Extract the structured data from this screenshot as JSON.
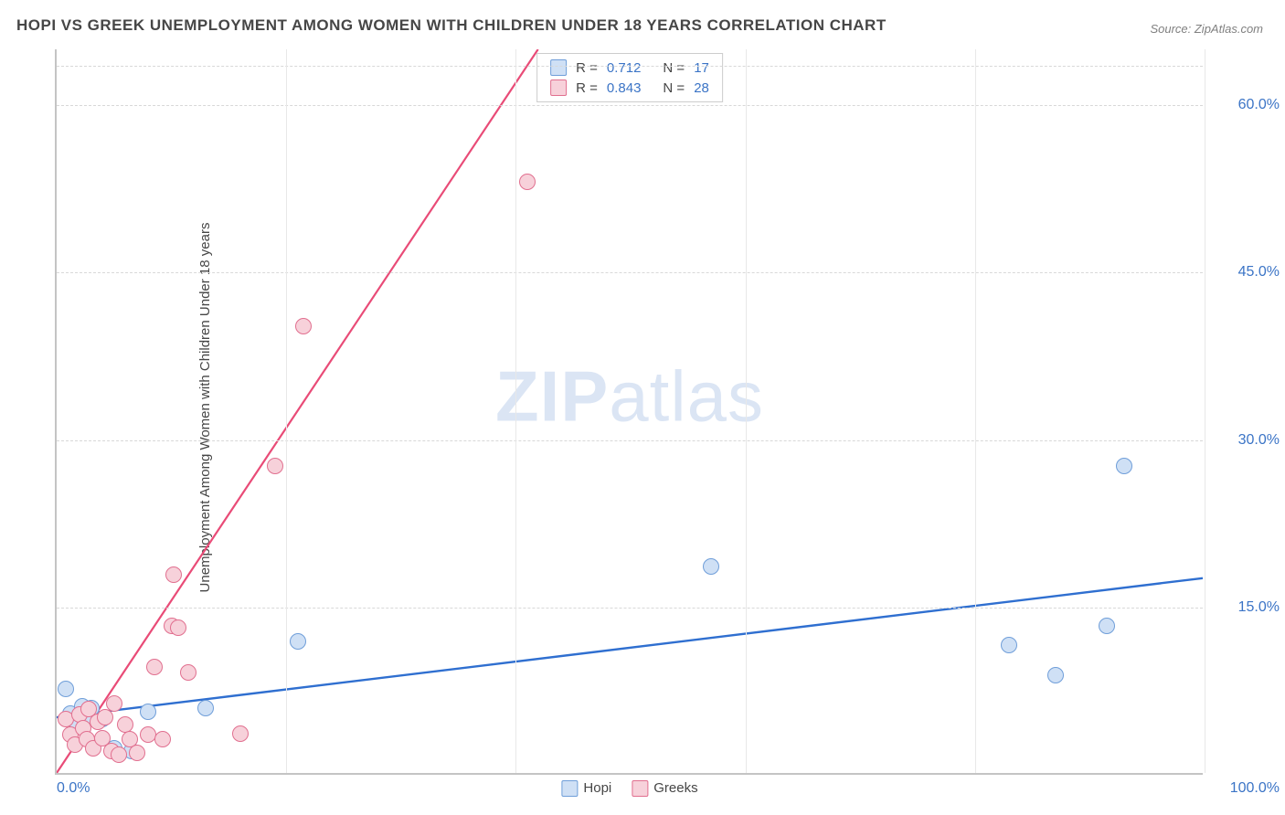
{
  "title": "HOPI VS GREEK UNEMPLOYMENT AMONG WOMEN WITH CHILDREN UNDER 18 YEARS CORRELATION CHART",
  "source": "Source: ZipAtlas.com",
  "ylabel": "Unemployment Among Women with Children Under 18 years",
  "watermark_bold": "ZIP",
  "watermark_light": "atlas",
  "chart": {
    "type": "scatter-correlation",
    "background_color": "#ffffff",
    "grid_color": "#d8d8d8",
    "axis_color": "#c4c4c4",
    "tick_color": "#3b74c6",
    "label_color": "#464646",
    "title_fontsize": 17,
    "label_fontsize": 15,
    "tick_fontsize": 16,
    "marker_size": 18,
    "xlim": [
      0,
      100
    ],
    "ylim": [
      0,
      65
    ],
    "yticks": [
      15,
      30,
      45,
      60
    ],
    "ytick_labels": [
      "15.0%",
      "30.0%",
      "45.0%",
      "60.0%"
    ],
    "x_vgrid": [
      20,
      40,
      60,
      80,
      100
    ],
    "xtick_left": "0.0%",
    "xtick_right": "100.0%",
    "series": [
      {
        "name": "Hopi",
        "fill": "#cfe0f5",
        "stroke": "#6f9ed9",
        "line_color": "#2f6fd0",
        "line_width": 2.4,
        "r": 0.712,
        "n": 17,
        "trend": {
          "x1": 0,
          "y1": 5.0,
          "x2": 100,
          "y2": 17.5
        },
        "points": [
          {
            "x": 0.8,
            "y": 7.5
          },
          {
            "x": 1.2,
            "y": 5.3
          },
          {
            "x": 1.8,
            "y": 4.2
          },
          {
            "x": 2.2,
            "y": 6.0
          },
          {
            "x": 2.6,
            "y": 5.0
          },
          {
            "x": 3.0,
            "y": 5.8
          },
          {
            "x": 4.0,
            "y": 4.8
          },
          {
            "x": 5.0,
            "y": 2.2
          },
          {
            "x": 6.5,
            "y": 2.0
          },
          {
            "x": 8.0,
            "y": 5.5
          },
          {
            "x": 13.0,
            "y": 5.8
          },
          {
            "x": 21.0,
            "y": 11.8
          },
          {
            "x": 57.0,
            "y": 18.5
          },
          {
            "x": 83.0,
            "y": 11.5
          },
          {
            "x": 87.0,
            "y": 8.8
          },
          {
            "x": 91.5,
            "y": 13.2
          },
          {
            "x": 93.0,
            "y": 27.5
          }
        ]
      },
      {
        "name": "Greeks",
        "fill": "#f7d1da",
        "stroke": "#e16f8f",
        "line_color": "#e94b77",
        "line_width": 2.2,
        "r": 0.843,
        "n": 28,
        "trend": {
          "x1": 0,
          "y1": 0.0,
          "x2": 42,
          "y2": 65.0
        },
        "points": [
          {
            "x": 0.8,
            "y": 4.8
          },
          {
            "x": 1.2,
            "y": 3.4
          },
          {
            "x": 1.6,
            "y": 2.5
          },
          {
            "x": 2.0,
            "y": 5.2
          },
          {
            "x": 2.3,
            "y": 4.0
          },
          {
            "x": 2.6,
            "y": 3.0
          },
          {
            "x": 2.8,
            "y": 5.7
          },
          {
            "x": 3.2,
            "y": 2.2
          },
          {
            "x": 3.6,
            "y": 4.6
          },
          {
            "x": 4.0,
            "y": 3.1
          },
          {
            "x": 4.2,
            "y": 5.0
          },
          {
            "x": 4.8,
            "y": 2.0
          },
          {
            "x": 5.0,
            "y": 6.2
          },
          {
            "x": 5.4,
            "y": 1.6
          },
          {
            "x": 6.0,
            "y": 4.3
          },
          {
            "x": 6.4,
            "y": 3.0
          },
          {
            "x": 7.0,
            "y": 1.8
          },
          {
            "x": 8.0,
            "y": 3.4
          },
          {
            "x": 8.5,
            "y": 9.5
          },
          {
            "x": 9.2,
            "y": 3.0
          },
          {
            "x": 10.0,
            "y": 13.2
          },
          {
            "x": 10.2,
            "y": 17.8
          },
          {
            "x": 10.6,
            "y": 13.0
          },
          {
            "x": 11.5,
            "y": 9.0
          },
          {
            "x": 16.0,
            "y": 3.5
          },
          {
            "x": 19.0,
            "y": 27.5
          },
          {
            "x": 21.5,
            "y": 40.0
          },
          {
            "x": 41.0,
            "y": 53.0
          }
        ]
      }
    ],
    "legend_bottom": [
      {
        "label": "Hopi",
        "fill": "#cfe0f5",
        "stroke": "#6f9ed9"
      },
      {
        "label": "Greeks",
        "fill": "#f7d1da",
        "stroke": "#e16f8f"
      }
    ],
    "corr_box": {
      "r_label": "R  =",
      "n_label": "N  =",
      "rows": [
        {
          "fill": "#cfe0f5",
          "stroke": "#6f9ed9",
          "r": "0.712",
          "n": "17"
        },
        {
          "fill": "#f7d1da",
          "stroke": "#e16f8f",
          "r": "0.843",
          "n": "28"
        }
      ]
    }
  }
}
